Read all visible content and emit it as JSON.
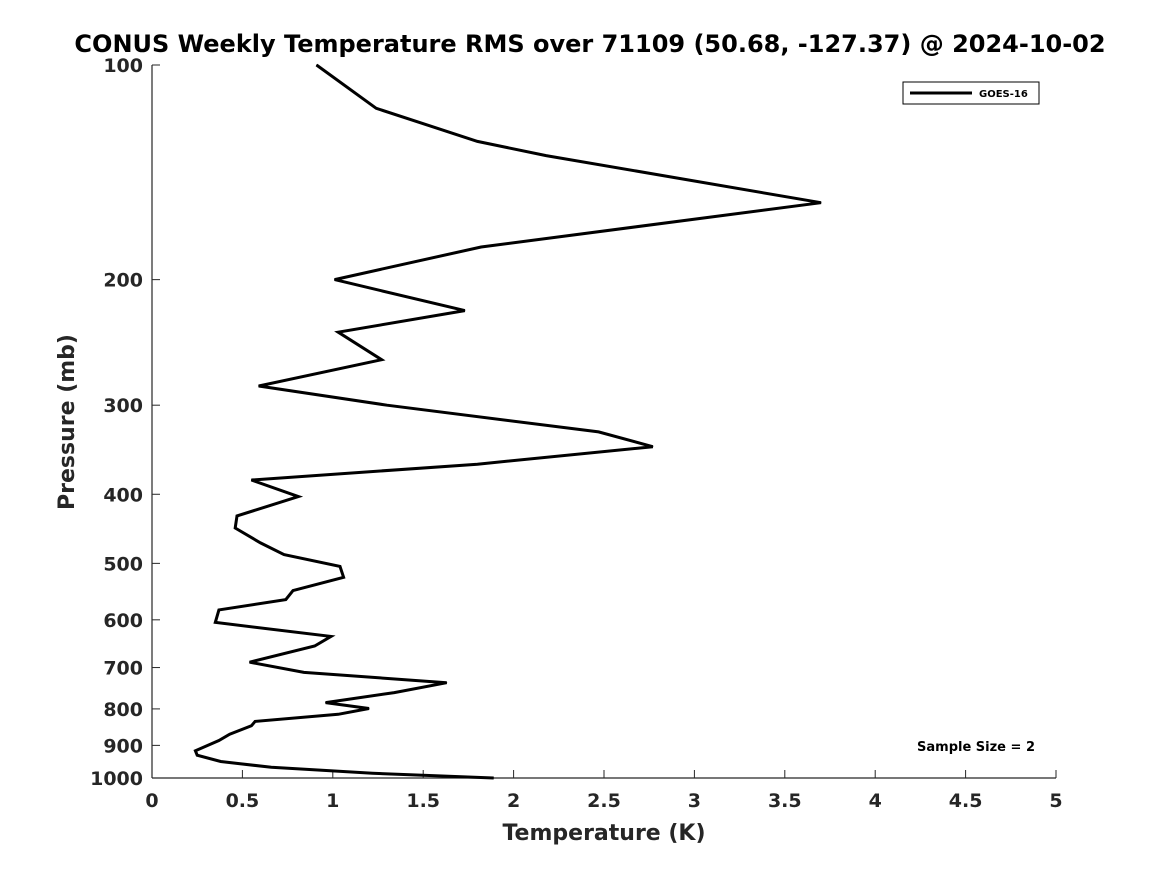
{
  "chart_data": {
    "type": "line",
    "title": "CONUS Weekly Temperature RMS over 71109 (50.68, -127.37) @ 2024-10-02",
    "xlabel": "Temperature (K)",
    "ylabel": "Pressure (mb)",
    "xlim": [
      0,
      5
    ],
    "ylim": [
      100,
      1000
    ],
    "y_scale": "log",
    "y_reversed": true,
    "x_ticks": [
      "0",
      "0.5",
      "1",
      "1.5",
      "2",
      "2.5",
      "3",
      "3.5",
      "4",
      "4.5",
      "5"
    ],
    "y_ticks": [
      "100",
      "200",
      "300",
      "400",
      "500",
      "600",
      "700",
      "800",
      "900",
      "1000"
    ],
    "grid": false,
    "legend_position": "top-right",
    "annotation": "Sample Size = 2",
    "series": [
      {
        "name": "GOES-16",
        "color": "#000000",
        "points": [
          [
            0.91,
            100
          ],
          [
            1.24,
            115
          ],
          [
            1.8,
            128
          ],
          [
            2.18,
            134
          ],
          [
            3.7,
            156
          ],
          [
            1.82,
            180
          ],
          [
            1.01,
            200
          ],
          [
            1.73,
            221
          ],
          [
            1.03,
            237
          ],
          [
            1.27,
            259
          ],
          [
            0.59,
            282
          ],
          [
            1.3,
            300
          ],
          [
            2.47,
            327
          ],
          [
            2.77,
            343
          ],
          [
            1.8,
            363
          ],
          [
            0.55,
            382
          ],
          [
            0.81,
            403
          ],
          [
            0.47,
            429
          ],
          [
            0.46,
            446
          ],
          [
            0.6,
            468
          ],
          [
            0.73,
            486
          ],
          [
            1.04,
            505
          ],
          [
            1.06,
            523
          ],
          [
            0.78,
            546
          ],
          [
            0.74,
            562
          ],
          [
            0.37,
            581
          ],
          [
            0.35,
            605
          ],
          [
            0.99,
            633
          ],
          [
            0.9,
            653
          ],
          [
            0.54,
            688
          ],
          [
            0.84,
            711
          ],
          [
            1.63,
            735
          ],
          [
            1.34,
            759
          ],
          [
            0.96,
            784
          ],
          [
            1.2,
            799
          ],
          [
            1.03,
            814
          ],
          [
            0.57,
            833
          ],
          [
            0.55,
            845
          ],
          [
            0.43,
            868
          ],
          [
            0.37,
            886
          ],
          [
            0.24,
            916
          ],
          [
            0.25,
            929
          ],
          [
            0.38,
            948
          ],
          [
            0.66,
            966
          ],
          [
            1.22,
            985
          ],
          [
            1.89,
            1000
          ]
        ]
      }
    ]
  }
}
